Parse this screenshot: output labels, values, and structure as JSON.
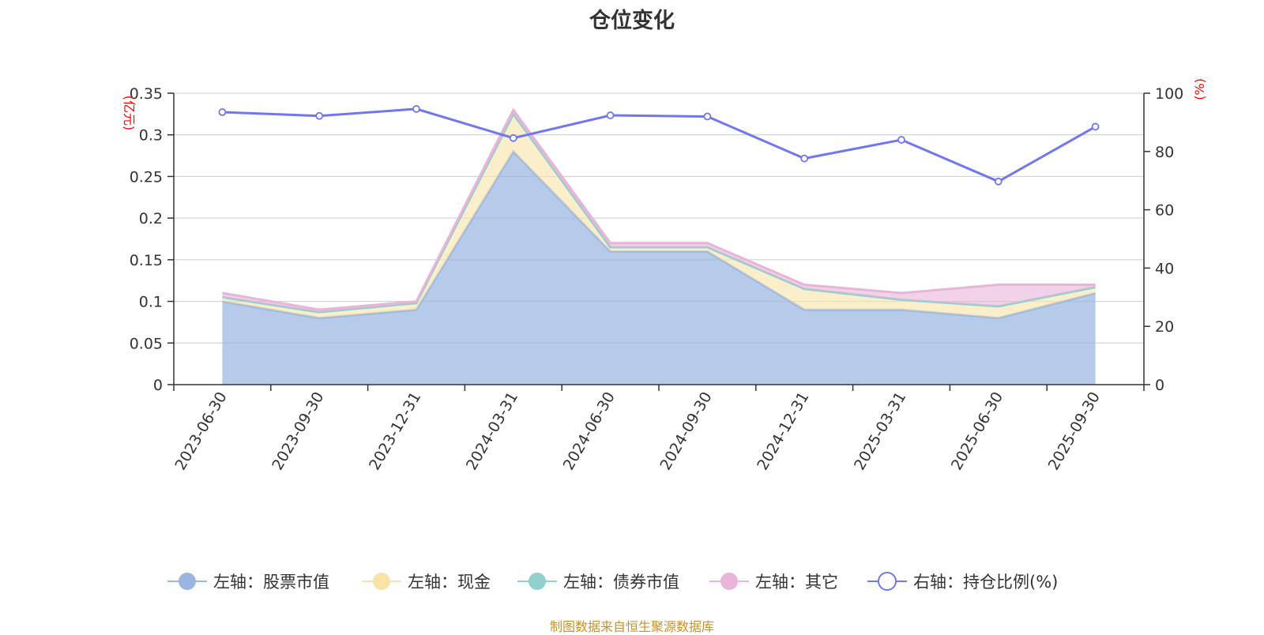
{
  "chart_data": {
    "type": "area",
    "title": "仓位变化",
    "categories": [
      "2023-06-30",
      "2023-09-30",
      "2023-12-31",
      "2024-03-31",
      "2024-06-30",
      "2024-09-30",
      "2024-12-31",
      "2025-03-31",
      "2025-06-30",
      "2025-09-30"
    ],
    "left_axis": {
      "unit": "(亿元)",
      "ylim": [
        0,
        0.35
      ],
      "ticks": [
        "0",
        "0.05",
        "0.1",
        "0.15",
        "0.2",
        "0.25",
        "0.3",
        "0.35"
      ],
      "tick_values": [
        0,
        0.05,
        0.1,
        0.15,
        0.2,
        0.25,
        0.3,
        0.35
      ]
    },
    "right_axis": {
      "unit": "(%)",
      "ylim": [
        0,
        100
      ],
      "ticks": [
        "0",
        "20",
        "40",
        "60",
        "80",
        "100"
      ],
      "tick_values": [
        0,
        20,
        40,
        60,
        80,
        100
      ]
    },
    "stacked_series": [
      {
        "name": "左轴：股票市值",
        "color": "#9ab6e0",
        "values": [
          0.1,
          0.08,
          0.09,
          0.28,
          0.16,
          0.16,
          0.09,
          0.09,
          0.08,
          0.11
        ]
      },
      {
        "name": "左轴：现金",
        "color": "#f8e4a8",
        "values": [
          0.005,
          0.007,
          0.008,
          0.045,
          0.005,
          0.005,
          0.025,
          0.012,
          0.014,
          0.007
        ]
      },
      {
        "name": "左轴：债券市值",
        "color": "#8fd1cf",
        "values": [
          0,
          0,
          0,
          0,
          0,
          0,
          0,
          0,
          0,
          0
        ]
      },
      {
        "name": "左轴：其它",
        "color": "#e8b4d8",
        "values": [
          0.005,
          0.003,
          0.002,
          0.005,
          0.005,
          0.005,
          0.005,
          0.008,
          0.026,
          0.003
        ]
      }
    ],
    "line_series": {
      "name": "右轴：持仓比例(%)",
      "color": "#7276ef",
      "axis": "right",
      "values": [
        93.5,
        92.2,
        94.6,
        84.6,
        92.4,
        92.0,
        77.6,
        84.0,
        69.7,
        88.5
      ]
    },
    "grid": true,
    "legend_position": "bottom"
  },
  "source_note": "制图数据来自恒生聚源数据库"
}
